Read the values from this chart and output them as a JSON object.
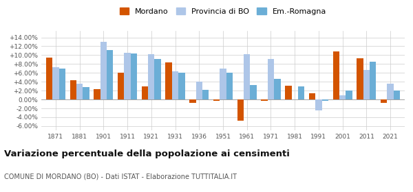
{
  "years": [
    1871,
    1881,
    1901,
    1911,
    1921,
    1931,
    1936,
    1951,
    1961,
    1971,
    1981,
    1991,
    2001,
    2011,
    2021
  ],
  "mordano": [
    9.5,
    4.3,
    2.4,
    6.0,
    3.0,
    8.3,
    -0.7,
    -0.3,
    -4.8,
    -0.3,
    3.1,
    1.4,
    10.8,
    9.3,
    -0.8
  ],
  "provincia_bo": [
    7.3,
    3.5,
    13.0,
    10.5,
    10.2,
    6.4,
    4.0,
    7.0,
    10.2,
    9.1,
    0.0,
    -2.4,
    1.0,
    6.6,
    3.6
  ],
  "em_romagna": [
    7.0,
    2.8,
    11.2,
    10.4,
    9.2,
    6.0,
    2.2,
    6.0,
    3.3,
    4.6,
    3.0,
    -0.3,
    2.0,
    8.5,
    2.0
  ],
  "color_mordano": "#d35400",
  "color_provincia": "#aec6e8",
  "color_em": "#6baed6",
  "title": "Variazione percentuale della popolazione ai censimenti",
  "subtitle": "COMUNE DI MORDANO (BO) - Dati ISTAT - Elaborazione TUTTITALIA.IT",
  "ylim": [
    -7,
    15.5
  ],
  "yticks": [
    -6,
    -4,
    -2,
    0,
    2,
    4,
    6,
    8,
    10,
    12,
    14
  ],
  "background": "#ffffff"
}
